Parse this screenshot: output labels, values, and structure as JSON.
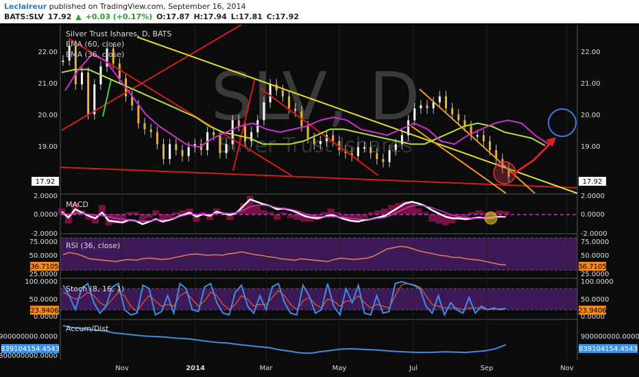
{
  "header": {
    "author": "Leclaireur",
    "published": "published on TradingView.com, September 16, 2014",
    "symbol": "BATS:SLV",
    "last": "17.92",
    "change": "+0.03 (+0.17%)",
    "open": "O:17.87",
    "high": "H:17.94",
    "low": "L:17.81",
    "close": "C:17.92"
  },
  "watermark": {
    "big": "SLV, D",
    "sub": "Silver Trust Ishares"
  },
  "chart_data": [
    {
      "type": "candlestick",
      "title": "Silver Trust Ishares, D, BATS",
      "legend": [
        "EMA (60, close)",
        "EMA (36, close)"
      ],
      "x_ticks": [
        "Nov",
        "2014",
        "Mar",
        "May",
        "Jul",
        "Sep",
        "Nov"
      ],
      "y_ticks": [
        "22.00",
        "21.00",
        "20.00",
        "19.00"
      ],
      "last_label": "17.92",
      "ylim": [
        17.4,
        23.0
      ],
      "price_series": [
        21.8,
        22.3,
        21.0,
        21.4,
        20.0,
        21.0,
        21.6,
        22.2,
        21.7,
        21.2,
        20.6,
        20.3,
        19.7,
        19.5,
        19.4,
        19.0,
        18.5,
        19.0,
        18.8,
        18.6,
        18.9,
        19.0,
        18.8,
        19.4,
        19.3,
        18.7,
        19.0,
        19.8,
        19.6,
        19.1,
        19.4,
        19.8,
        20.4,
        21.0,
        20.8,
        20.6,
        20.2,
        20.1,
        19.6,
        19.2,
        19.0,
        19.1,
        19.3,
        19.1,
        18.8,
        18.7,
        18.6,
        18.9,
        18.9,
        18.7,
        18.5,
        18.4,
        18.8,
        19.0,
        19.3,
        19.8,
        20.2,
        20.3,
        20.2,
        20.4,
        20.6,
        20.2,
        20.0,
        19.8,
        19.6,
        19.3,
        19.3,
        19.1,
        18.8,
        18.5,
        18.2,
        17.9
      ],
      "ema60": [
        21.4,
        21.5,
        21.5,
        21.3,
        21.1,
        20.9,
        20.7,
        20.5,
        20.3,
        20.1,
        19.9,
        19.6,
        19.4,
        19.3,
        19.2,
        19.0,
        19.0,
        19.0,
        19.1,
        19.3,
        19.5,
        19.5,
        19.4,
        19.3,
        19.2,
        19.1,
        19.0,
        19.0,
        19.2,
        19.4,
        19.6,
        19.7,
        19.6,
        19.4,
        19.3,
        19.2,
        18.95
      ],
      "ema36": [
        20.8,
        21.5,
        22.0,
        21.8,
        21.2,
        20.6,
        20.0,
        19.6,
        19.3,
        19.0,
        18.9,
        19.2,
        19.4,
        19.6,
        19.7,
        19.5,
        19.4,
        19.5,
        19.6,
        19.8,
        19.9,
        19.8,
        19.5,
        19.4,
        19.3,
        19.5,
        19.7,
        19.5,
        19.1,
        19.0,
        19.3,
        19.5,
        19.7,
        19.8,
        19.7,
        19.3,
        19.0
      ]
    },
    {
      "type": "line",
      "title": "MACD",
      "y_ticks": [
        "2.0000",
        "0.0000",
        "-2.0000"
      ],
      "ylim": [
        -2.2,
        2.2
      ],
      "macd": [
        0.3,
        -0.4,
        0.6,
        0.2,
        -0.2,
        -0.5,
        0.2,
        -0.8,
        -0.9,
        -1.0,
        -0.7,
        -0.8,
        -1.2,
        -0.9,
        -0.6,
        -0.9,
        -0.7,
        -0.4,
        -0.1,
        0.2,
        -0.3,
        0.0,
        -0.2,
        0.3,
        0.1,
        -0.1,
        0.2,
        1.0,
        1.8,
        1.5,
        1.2,
        1.0,
        0.6,
        0.7,
        0.5,
        0.2,
        -0.2,
        -0.4,
        -0.5,
        -0.3,
        -0.1,
        -0.3,
        -0.6,
        -0.8,
        -0.9,
        -0.7,
        -0.6,
        -0.4,
        -0.2,
        0.3,
        0.8,
        1.3,
        1.5,
        1.3,
        1.0,
        0.5,
        0.1,
        -0.3,
        -0.5,
        -0.5,
        -0.6,
        -0.5,
        -0.4,
        -0.5,
        -0.4,
        -0.3,
        -0.35
      ],
      "signal": [
        0.1,
        0.0,
        0.1,
        0.1,
        0.0,
        -0.1,
        -0.2,
        -0.3,
        -0.5,
        -0.6,
        -0.7,
        -0.8,
        -0.9,
        -0.8,
        -0.7,
        -0.7,
        -0.6,
        -0.4,
        -0.2,
        0.0,
        0.0,
        0.0,
        0.0,
        0.1,
        0.1,
        0.1,
        0.2,
        0.5,
        0.9,
        1.1,
        1.1,
        1.0,
        0.8,
        0.7,
        0.6,
        0.4,
        0.1,
        -0.1,
        -0.3,
        -0.3,
        -0.3,
        -0.3,
        -0.4,
        -0.5,
        -0.6,
        -0.6,
        -0.6,
        -0.5,
        -0.4,
        -0.1,
        0.3,
        0.7,
        1.0,
        1.1,
        1.0,
        0.8,
        0.5,
        0.2,
        -0.1,
        -0.3,
        -0.4,
        -0.5,
        -0.5,
        -0.5,
        -0.4,
        -0.4,
        -0.4
      ]
    },
    {
      "type": "line",
      "title": "RSI (36, close)",
      "y_ticks": [
        "75.0000",
        "50.0000",
        "25.0000"
      ],
      "last_label": "36.7105",
      "ylim": [
        20,
        80
      ],
      "values": [
        52,
        55,
        53,
        50,
        46,
        45,
        44,
        43,
        42,
        44,
        45,
        44,
        46,
        47,
        46,
        45,
        46,
        48,
        50,
        52,
        53,
        52,
        51,
        52,
        51,
        53,
        54,
        56,
        54,
        52,
        51,
        49,
        48,
        46,
        45,
        44,
        46,
        45,
        44,
        43,
        42,
        45,
        47,
        46,
        45,
        46,
        47,
        50,
        55,
        60,
        62,
        64,
        63,
        60,
        57,
        55,
        53,
        51,
        50,
        48,
        48,
        46,
        45,
        44,
        42,
        40,
        38,
        37
      ]
    },
    {
      "type": "line",
      "title": "Stoch (8, 16, 1)",
      "y_ticks": [
        "100.0000",
        "50.0000",
        "0.0000"
      ],
      "last_label": "23.9406",
      "ylim": [
        0,
        100
      ],
      "k": [
        90,
        60,
        20,
        80,
        95,
        40,
        10,
        30,
        85,
        95,
        20,
        5,
        10,
        90,
        80,
        5,
        15,
        60,
        10,
        95,
        80,
        20,
        15,
        85,
        95,
        40,
        10,
        5,
        70,
        90,
        30,
        10,
        60,
        20,
        85,
        95,
        40,
        10,
        5,
        90,
        60,
        10,
        20,
        95,
        30,
        5,
        80,
        40,
        90,
        10,
        5,
        60,
        10,
        15,
        95,
        100,
        95,
        90,
        80,
        30,
        10,
        60,
        5,
        40,
        20,
        10,
        55,
        10,
        30,
        20,
        25,
        20,
        24
      ],
      "d": [
        70,
        60,
        50,
        55,
        70,
        60,
        40,
        30,
        50,
        70,
        60,
        30,
        15,
        40,
        60,
        45,
        30,
        35,
        30,
        60,
        70,
        50,
        30,
        45,
        70,
        60,
        35,
        20,
        35,
        60,
        50,
        30,
        35,
        35,
        55,
        75,
        60,
        35,
        20,
        45,
        55,
        35,
        25,
        50,
        45,
        30,
        45,
        45,
        60,
        40,
        25,
        35,
        30,
        25,
        60,
        90,
        95,
        92,
        85,
        60,
        35,
        30,
        25,
        25,
        25,
        20,
        25,
        25,
        25,
        20,
        22,
        23,
        24
      ]
    },
    {
      "type": "line",
      "title": "Accum/Dist",
      "y_ticks": [
        "900000000.0000",
        "800000000.0000"
      ],
      "last_label": "839104154.4543",
      "ylim": [
        770000000,
        950000000
      ],
      "values": [
        930000000,
        920000000,
        915000000,
        910000000,
        905000000,
        895000000,
        890000000,
        885000000,
        880000000,
        878000000,
        875000000,
        870000000,
        868000000,
        862000000,
        855000000,
        850000000,
        847000000,
        840000000,
        835000000,
        830000000,
        825000000,
        815000000,
        808000000,
        800000000,
        798000000,
        806000000,
        812000000,
        818000000,
        820000000,
        817000000,
        815000000,
        812000000,
        808000000,
        805000000,
        803000000,
        802000000,
        803000000,
        805000000,
        804000000,
        802000000,
        806000000,
        810000000,
        820000000,
        839000000
      ]
    }
  ]
}
